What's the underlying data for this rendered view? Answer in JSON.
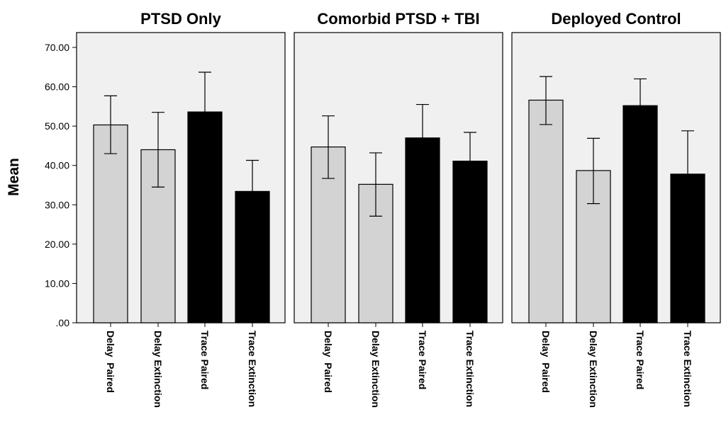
{
  "chart_data": {
    "type": "bar",
    "ylabel": "Mean",
    "ylim": [
      0,
      70
    ],
    "yticks": [
      0,
      10,
      20,
      30,
      40,
      50,
      60,
      70
    ],
    "ytick_labels": [
      ".00",
      "10.00",
      "20.00",
      "30.00",
      "40.00",
      "50.00",
      "60.00",
      "70.00"
    ],
    "categories": [
      "Delay  Paired",
      "Delay Extinction",
      "Trace Paired",
      "Trace Extinction"
    ],
    "category_colors": [
      "#d3d3d3",
      "#d3d3d3",
      "#000000",
      "#000000"
    ],
    "panel_background": "#f0f0f0",
    "panels": [
      {
        "title": "PTSD Only",
        "values": [
          50.3,
          44.0,
          53.6,
          33.4
        ],
        "error_low": [
          43.0,
          34.5,
          43.8,
          25.4
        ],
        "error_high": [
          57.7,
          53.5,
          63.7,
          41.3
        ]
      },
      {
        "title": "Comorbid PTSD + TBI",
        "values": [
          44.7,
          35.2,
          47.0,
          41.1
        ],
        "error_low": [
          36.7,
          27.1,
          38.5,
          33.8
        ],
        "error_high": [
          52.6,
          43.2,
          55.5,
          48.4
        ]
      },
      {
        "title": "Deployed Control",
        "values": [
          56.6,
          38.7,
          55.2,
          37.8
        ],
        "error_low": [
          50.4,
          30.3,
          48.3,
          26.8
        ],
        "error_high": [
          62.6,
          46.9,
          62.0,
          48.8
        ]
      }
    ]
  }
}
